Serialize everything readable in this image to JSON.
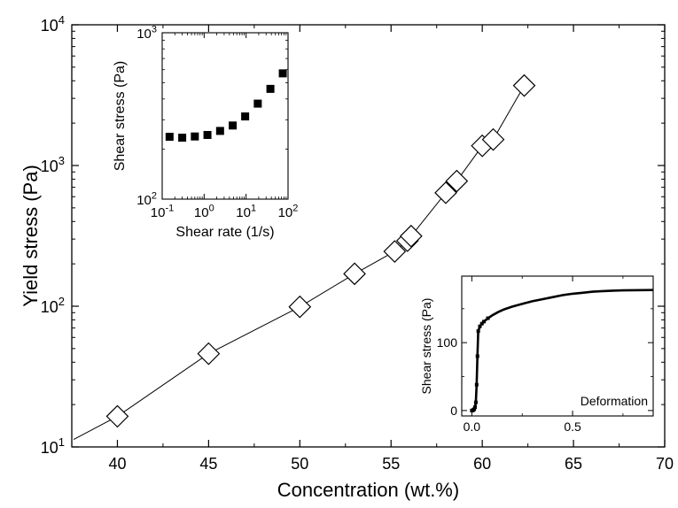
{
  "chart_data": [
    {
      "type": "scatter",
      "role": "main",
      "xlabel": "Concentration (wt.%)",
      "ylabel": "Yield stress (Pa)",
      "xlim": [
        37.5,
        70
      ],
      "ylim": [
        10,
        10000
      ],
      "yscale": "log",
      "x_ticks": [
        "40",
        "45",
        "50",
        "55",
        "60",
        "65",
        "70"
      ],
      "y_ticks": [
        {
          "base": "10",
          "exp": "1"
        },
        {
          "base": "10",
          "exp": "2"
        },
        {
          "base": "10",
          "exp": "3"
        },
        {
          "base": "10",
          "exp": "4"
        }
      ],
      "marker": "open-diamond",
      "line": "solid",
      "series": [
        {
          "x": [
            40,
            45,
            50,
            53,
            55.2,
            55.9,
            56.1,
            58,
            58.6,
            60,
            60.6,
            62.3
          ],
          "y": [
            16.5,
            46,
            99,
            170,
            245,
            292,
            315,
            640,
            775,
            1380,
            1530,
            3700
          ]
        }
      ],
      "line_start": {
        "x": 37.6,
        "y": 11.3
      }
    },
    {
      "type": "scatter",
      "role": "inset-top-left",
      "xlabel": "Shear rate (1/s)",
      "ylabel": "Shear stress (Pa)",
      "xscale": "log",
      "yscale": "log",
      "xlim": [
        0.1,
        100
      ],
      "ylim": [
        100,
        1000
      ],
      "x_ticks": [
        {
          "base": "10",
          "exp": "-1"
        },
        {
          "base": "10",
          "exp": "0"
        },
        {
          "base": "10",
          "exp": "1"
        },
        {
          "base": "10",
          "exp": "2"
        }
      ],
      "y_ticks": [
        {
          "base": "10",
          "exp": "2"
        },
        {
          "base": "10",
          "exp": "3"
        }
      ],
      "marker": "filled-square",
      "series": [
        {
          "x": [
            0.15,
            0.3,
            0.6,
            1.2,
            2.4,
            4.8,
            9.5,
            19,
            38,
            75
          ],
          "y": [
            237,
            234,
            238,
            243,
            257,
            277,
            314,
            375,
            460,
            570
          ]
        }
      ]
    },
    {
      "type": "line",
      "role": "inset-bottom-right",
      "ylabel": "Shear stress (Pa)",
      "annotation": "Deformation",
      "xlim": [
        -0.05,
        0.9
      ],
      "ylim": [
        -8,
        198
      ],
      "x_ticks": [
        "0.0",
        "0.5"
      ],
      "x_tick_values": [
        0.0,
        0.5
      ],
      "y_ticks": [
        "0",
        "100"
      ],
      "y_tick_values": [
        0,
        100
      ],
      "marker": "filled-square-small",
      "series": [
        {
          "x": [
            0.0,
            0.004,
            0.008,
            0.012,
            0.016,
            0.02,
            0.024,
            0.028,
            0.032,
            0.04,
            0.05,
            0.06,
            0.08,
            0.1,
            0.13,
            0.16,
            0.2,
            0.25,
            0.3,
            0.35,
            0.4,
            0.45,
            0.5,
            0.55,
            0.6,
            0.65,
            0.7,
            0.75,
            0.8,
            0.9
          ],
          "y": [
            0,
            0,
            1,
            2,
            5,
            12,
            38,
            80,
            117,
            124,
            128,
            131,
            136,
            140,
            145,
            149,
            153,
            157,
            161,
            164,
            167,
            170,
            172,
            173.5,
            175,
            176,
            176.6,
            177,
            177.3,
            177.5
          ]
        }
      ]
    }
  ]
}
